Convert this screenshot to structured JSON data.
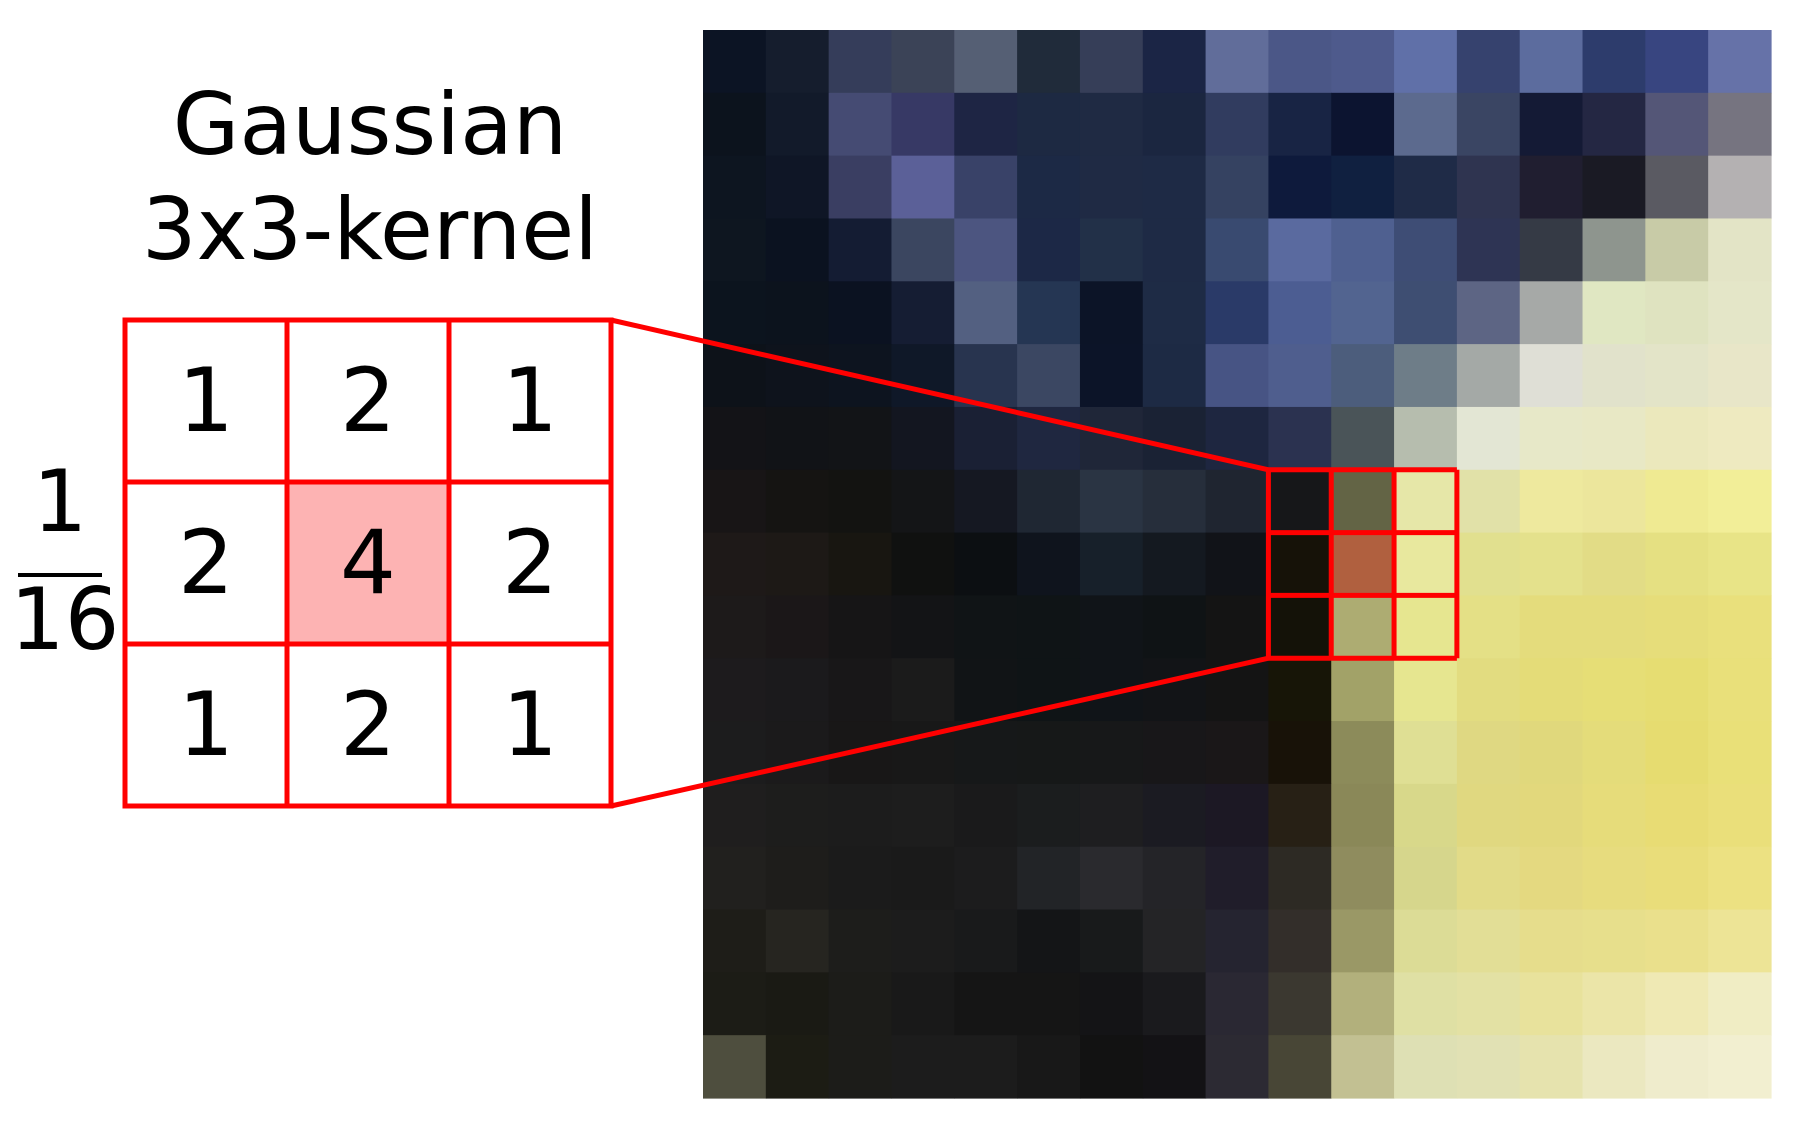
{
  "title": {
    "line1": "Gaussian",
    "line2": "3x3-kernel"
  },
  "normalization": {
    "numerator": "1",
    "denominator": "16"
  },
  "kernel": [
    [
      "1",
      "2",
      "1"
    ],
    [
      "2",
      "4",
      "2"
    ],
    [
      "1",
      "2",
      "1"
    ]
  ],
  "colors": {
    "outline": "#ff0000",
    "center_highlight": "#fdb3b3",
    "text": "#000000"
  },
  "pixel_image": {
    "cols": 17,
    "rows": 17,
    "selection": {
      "col": 9,
      "row": 7,
      "size": 3
    },
    "pixels": [
      [
        "#0c1424",
        "#151d2d",
        "#353d5a",
        "#3b4357",
        "#555f74",
        "#202b3a",
        "#363e58",
        "#1b2545",
        "#616d9a",
        "#4b5787",
        "#4e5a8c",
        "#6070a8",
        "#36426e",
        "#5c6c9e",
        "#2d3c6c",
        "#384580",
        "#6672a8"
      ],
      [
        "#0c131d",
        "#121a2a",
        "#454b73",
        "#373965",
        "#1e2544",
        "#1d2942",
        "#1f2a43",
        "#1b2640",
        "#313c5f",
        "#182444",
        "#0c1430",
        "#5c6a8e",
        "#3a4563",
        "#141a35",
        "#242743",
        "#545677",
        "#767480"
      ],
      [
        "#0d1520",
        "#0f1626",
        "#3a3e62",
        "#5b6098",
        "#394268",
        "#1c2945",
        "#1f2a44",
        "#1e2a45",
        "#354261",
        "#0e1a3c",
        "#102040",
        "#1f2b47",
        "#2f3450",
        "#201e30",
        "#1a1a24",
        "#5a5a62",
        "#b4b1b2"
      ],
      [
        "#0e1620",
        "#0b1220",
        "#141c33",
        "#3b4660",
        "#4c5580",
        "#1c2846",
        "#223048",
        "#1e2a45",
        "#394a70",
        "#5a6a9f",
        "#4f6090",
        "#3e4d75",
        "#2e3454",
        "#353a45",
        "#8e958e",
        "#c8cba7",
        "#e3e4c6"
      ],
      [
        "#0c141e",
        "#0c131d",
        "#0b1221",
        "#151d33",
        "#536081",
        "#253653",
        "#0c1427",
        "#1e2b45",
        "#2a3a68",
        "#4c5d92",
        "#526490",
        "#3e4e72",
        "#5d6584",
        "#a6a9a7",
        "#e0e7c2",
        "#dfe3c0",
        "#e4e6c8"
      ],
      [
        "#0d1219",
        "#0e131c",
        "#0d141f",
        "#0f1828",
        "#28344f",
        "#3b4762",
        "#0c1428",
        "#1d2a44",
        "#475484",
        "#4f5e8e",
        "#4c5d7c",
        "#6e7d88",
        "#a4a9a6",
        "#dfdfd6",
        "#e1e2cb",
        "#e3e4c8",
        "#e8e6c8"
      ],
      [
        "#131317",
        "#111317",
        "#121417",
        "#131620",
        "#1a2034",
        "#1f2740",
        "#1f2638",
        "#1a2234",
        "#1e2640",
        "#2b3250",
        "#4a5458",
        "#b6bdae",
        "#e3e6d4",
        "#e7e8c8",
        "#e8e8c5",
        "#ebe8bc",
        "#eeeac0"
      ],
      [
        "#181516",
        "#151412",
        "#131311",
        "#141517",
        "#151822",
        "#1f2733",
        "#2a3443",
        "#262e3b",
        "#1f2530",
        "#161719",
        "#636445",
        "#e6e7a8",
        "#e1e1a8",
        "#eee99e",
        "#ece69c",
        "#efea92",
        "#f2ee98"
      ],
      [
        "#1e1918",
        "#1d1916",
        "#181611",
        "#101110",
        "#0c0f12",
        "#0f141d",
        "#17202a",
        "#141920",
        "#111318",
        "#161208",
        "#b0603f",
        "#e8e89e",
        "#e1e08f",
        "#e4e18c",
        "#e2dc86",
        "#e5e082",
        "#e8e487"
      ],
      [
        "#1d1a1a",
        "#1b1718",
        "#161516",
        "#131416",
        "#101416",
        "#0f1416",
        "#101418",
        "#0f1315",
        "#141414",
        "#141208",
        "#adac72",
        "#e6e690",
        "#e4e086",
        "#e4dc7c",
        "#e4dc7c",
        "#e6dd7a",
        "#e9e07c"
      ],
      [
        "#1d1b1d",
        "#1b1a1c",
        "#181718",
        "#1b1b1b",
        "#111416",
        "#0f1416",
        "#101418",
        "#121417",
        "#141414",
        "#171507",
        "#a2a268",
        "#e6e690",
        "#e2dc80",
        "#e4dc78",
        "#e6de76",
        "#e6dd72",
        "#e9e07a"
      ],
      [
        "#1c1c1d",
        "#1b1a1b",
        "#181717",
        "#181818",
        "#161819",
        "#161818",
        "#171819",
        "#181719",
        "#1a1718",
        "#181208",
        "#8c8b5a",
        "#dfdf94",
        "#dfd882",
        "#e0d87c",
        "#e4dc7a",
        "#e6dc70",
        "#e9e078"
      ],
      [
        "#1f1e1e",
        "#1d1d1c",
        "#1c1c1c",
        "#1d1d1d",
        "#1a1a1b",
        "#1b1d1e",
        "#1e1e20",
        "#1b1b22",
        "#1c1824",
        "#272015",
        "#8a8858",
        "#d8d88a",
        "#e0d880",
        "#e2d87c",
        "#e6dc7a",
        "#e8dc74",
        "#eadf7a"
      ],
      [
        "#21201e",
        "#1e1d1b",
        "#1b1b1b",
        "#1a1a1a",
        "#1c1c1d",
        "#222427",
        "#2a2a2e",
        "#242428",
        "#201d2a",
        "#2d2a24",
        "#8f8c5e",
        "#d6d68c",
        "#e2db88",
        "#e4d980",
        "#e7dc7e",
        "#e9dd7a",
        "#ece182"
      ],
      [
        "#1e1d18",
        "#262520",
        "#1d1d1b",
        "#1c1c1c",
        "#191a1b",
        "#141517",
        "#181a1b",
        "#242426",
        "#252430",
        "#332e2a",
        "#9a9866",
        "#dcdc96",
        "#e2de96",
        "#e6dd8c",
        "#e7df8c",
        "#eae08c",
        "#ede496"
      ],
      [
        "#1c1c16",
        "#1a1a14",
        "#1c1c19",
        "#191919",
        "#151515",
        "#151515",
        "#141416",
        "#1a1a1d",
        "#2a2833",
        "#3b3830",
        "#b2b07c",
        "#dfe0a4",
        "#e3e1a4",
        "#e8e29c",
        "#ebe5a8",
        "#efe9b4",
        "#f0edc4"
      ],
      [
        "#4e4e3e",
        "#1c1c14",
        "#1c1c19",
        "#1c1c1c",
        "#1c1c1c",
        "#181818",
        "#121212",
        "#131215",
        "#2c2a33",
        "#484636",
        "#c2c092",
        "#dee0b4",
        "#e1e1b4",
        "#e6e3ae",
        "#ebe8c0",
        "#efeccc",
        "#f2efd0"
      ]
    ]
  }
}
